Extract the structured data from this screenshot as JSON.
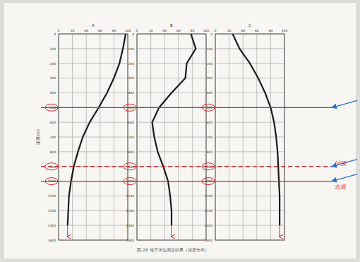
{
  "chart_data": [
    {
      "type": "line",
      "title": "A",
      "ylabel": "深度(m)",
      "y": [
        0,
        100,
        200,
        300,
        400,
        500,
        600,
        700,
        800,
        900,
        1000,
        1100,
        1200,
        1300
      ],
      "series": [
        {
          "name": "A",
          "color": "#1a1a1a",
          "values": [
            97,
            93,
            88,
            80,
            70,
            58,
            45,
            35,
            28,
            22,
            18,
            15,
            14,
            13
          ]
        }
      ],
      "xlim": [
        0,
        100
      ],
      "xticks": [
        0,
        20,
        40,
        60,
        80,
        100
      ],
      "ylim": [
        0,
        1400
      ],
      "yticks": [
        0,
        100,
        200,
        300,
        400,
        500,
        600,
        700,
        800,
        900,
        1000,
        1100,
        1200,
        1300,
        1400
      ],
      "grid": true
    },
    {
      "type": "line",
      "title": "B",
      "y": [
        0,
        100,
        200,
        300,
        400,
        500,
        600,
        700,
        800,
        900,
        1000,
        1100,
        1200,
        1300
      ],
      "series": [
        {
          "name": "B",
          "color": "#1a1a1a",
          "values": [
            78,
            85,
            72,
            70,
            50,
            32,
            22,
            25,
            30,
            38,
            45,
            48,
            50,
            50
          ]
        }
      ],
      "xlim": [
        0,
        100
      ],
      "xticks": [
        0,
        20,
        40,
        60,
        80,
        100
      ],
      "ylim": [
        0,
        1400
      ],
      "yticks": [
        0,
        100,
        200,
        300,
        400,
        500,
        600,
        700,
        800,
        900,
        1000,
        1100,
        1200,
        1300,
        1400
      ],
      "grid": true
    },
    {
      "type": "line",
      "title": "C",
      "y": [
        0,
        100,
        200,
        300,
        400,
        500,
        600,
        700,
        800,
        900,
        1000,
        1100,
        1200,
        1300
      ],
      "series": [
        {
          "name": "C",
          "color": "#1a1a1a",
          "values": [
            25,
            35,
            50,
            62,
            72,
            80,
            85,
            88,
            90,
            91,
            92,
            93,
            93,
            93
          ]
        }
      ],
      "xlim": [
        0,
        100
      ],
      "xticks": [
        0,
        20,
        40,
        60,
        80,
        100
      ],
      "ylim": [
        0,
        1400
      ],
      "yticks": [
        0,
        100,
        200,
        300,
        400,
        500,
        600,
        700,
        800,
        900,
        1000,
        1100,
        1200,
        1300,
        1400
      ],
      "grid": true
    }
  ],
  "annotations": {
    "color": "#e0202a",
    "lines": [
      {
        "value": 500,
        "line_style": "solid"
      },
      {
        "value": 900,
        "line_style": "dashed",
        "label": "沙顶"
      },
      {
        "value": 1000,
        "line_style": "solid",
        "label": "古底"
      }
    ]
  },
  "caption": "図-26 地下水位測定結果（深度分布）"
}
